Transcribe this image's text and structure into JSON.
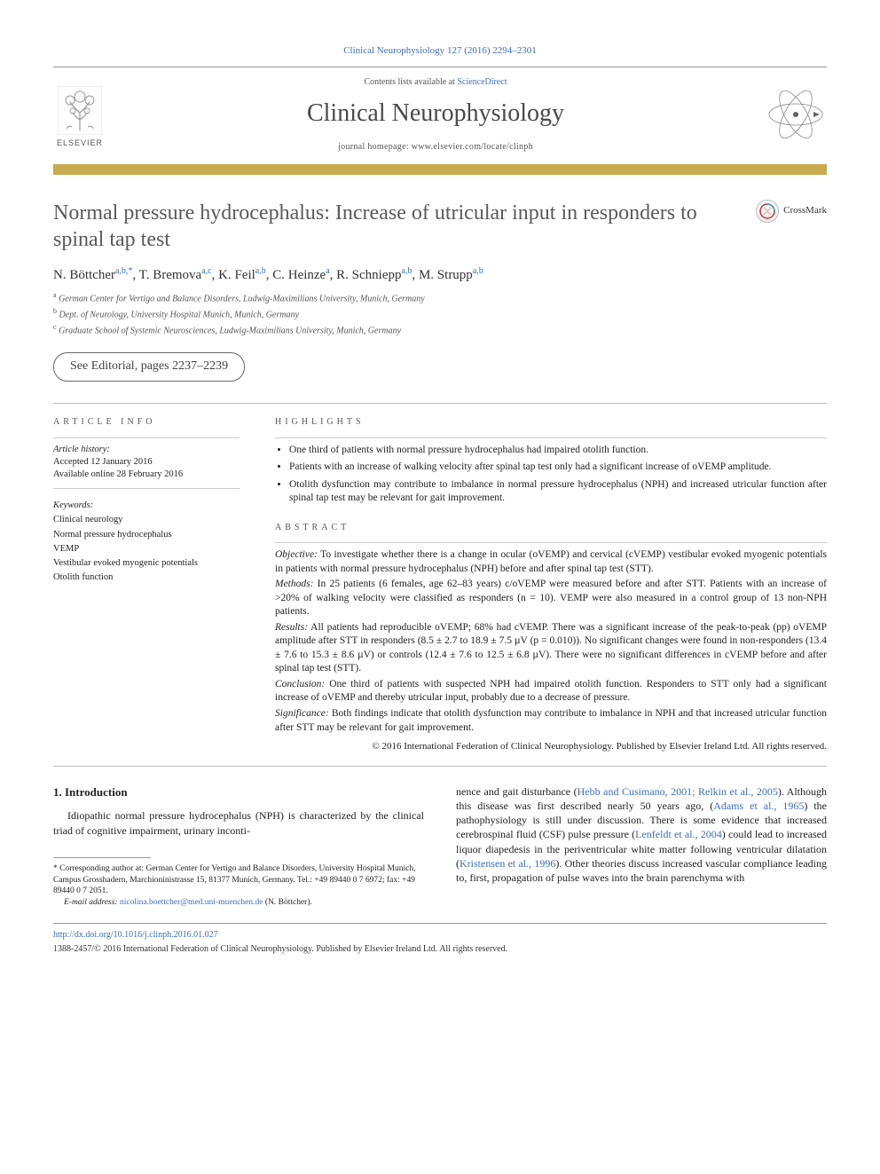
{
  "running_head": {
    "journal_abbrev": "Clinical Neurophysiology",
    "volume": "127",
    "year": "2016",
    "pages": "2294–2301"
  },
  "masthead": {
    "contents_prefix": "Contents lists available at ",
    "contents_link": "ScienceDirect",
    "journal_name": "Clinical Neurophysiology",
    "homepage_prefix": "journal homepage: ",
    "homepage": "www.elsevier.com/locate/clinph",
    "publisher_word": "ELSEVIER"
  },
  "colors": {
    "gold_bar": "#c9a94f",
    "link": "#3b6dbf",
    "title_gray": "#5a5a5a"
  },
  "title": "Normal pressure hydrocephalus: Increase of utricular input in responders to spinal tap test",
  "crossmark_label": "CrossMark",
  "authors": [
    {
      "name": "N. Böttcher",
      "aff": "a,b,",
      "star": "*"
    },
    {
      "name": "T. Bremova",
      "aff": "a,c"
    },
    {
      "name": "K. Feil",
      "aff": "a,b"
    },
    {
      "name": "C. Heinze",
      "aff": "a"
    },
    {
      "name": "R. Schniepp",
      "aff": "a,b"
    },
    {
      "name": "M. Strupp",
      "aff": "a,b"
    }
  ],
  "affiliations": [
    {
      "key": "a",
      "text": "German Center for Vertigo and Balance Disorders, Ludwig-Maximilians University, Munich, Germany"
    },
    {
      "key": "b",
      "text": "Dept. of Neurology, University Hospital Munich, Munich, Germany"
    },
    {
      "key": "c",
      "text": "Graduate School of Systemic Neurosciences, Ludwig-Maximilians University, Munich, Germany"
    }
  ],
  "editorial_note": "See Editorial, pages 2237–2239",
  "article_info": {
    "heading": "ARTICLE INFO",
    "history_label": "Article history:",
    "accepted": "Accepted 12 January 2016",
    "online": "Available online 28 February 2016",
    "keywords_label": "Keywords:",
    "keywords": [
      "Clinical neurology",
      "Normal pressure hydrocephalus",
      "VEMP",
      "Vestibular evoked myogenic potentials",
      "Otolith function"
    ]
  },
  "highlights": {
    "heading": "HIGHLIGHTS",
    "items": [
      "One third of patients with normal pressure hydrocephalus had impaired otolith function.",
      "Patients with an increase of walking velocity after spinal tap test only had a significant increase of oVEMP amplitude.",
      "Otolith dysfunction may contribute to imbalance in normal pressure hydrocephalus (NPH) and increased utricular function after spinal tap test may be relevant for gait improvement."
    ]
  },
  "abstract": {
    "heading": "ABSTRACT",
    "objective_label": "Objective:",
    "objective": "To investigate whether there is a change in ocular (oVEMP) and cervical (cVEMP) vestibular evoked myogenic potentials in patients with normal pressure hydrocephalus (NPH) before and after spinal tap test (STT).",
    "methods_label": "Methods:",
    "methods": "In 25 patients (6 females, age 62–83 years) c/oVEMP were measured before and after STT. Patients with an increase of >20% of walking velocity were classified as responders (n = 10). VEMP were also measured in a control group of 13 non-NPH patients.",
    "results_label": "Results:",
    "results": "All patients had reproducible oVEMP; 68% had cVEMP. There was a significant increase of the peak-to-peak (pp) oVEMP amplitude after STT in responders (8.5 ± 2.7 to 18.9 ± 7.5 µV (p = 0.010)). No significant changes were found in non-responders (13.4 ± 7.6 to 15.3 ± 8.6 µV) or controls (12.4 ± 7.6 to 12.5 ± 6.8 µV). There were no significant differences in cVEMP before and after spinal tap test (STT).",
    "conclusion_label": "Conclusion:",
    "conclusion": "One third of patients with suspected NPH had impaired otolith function. Responders to STT only had a significant increase of oVEMP and thereby utricular input, probably due to a decrease of pressure.",
    "significance_label": "Significance:",
    "significance": "Both findings indicate that otolith dysfunction may contribute to imbalance in NPH and that increased utricular function after STT may be relevant for gait improvement.",
    "copyright": "© 2016 International Federation of Clinical Neurophysiology. Published by Elsevier Ireland Ltd. All rights reserved."
  },
  "intro": {
    "heading": "1. Introduction",
    "col1": "Idiopathic normal pressure hydrocephalus (NPH) is characterized by the clinical triad of cognitive impairment, urinary inconti-",
    "col2_parts": [
      {
        "t": "nence and gait disturbance ("
      },
      {
        "c": "Hebb and Cusimano, 2001; Relkin et al., 2005"
      },
      {
        "t": "). Although this disease was first described nearly 50 years ago, ("
      },
      {
        "c": "Adams et al., 1965"
      },
      {
        "t": ") the pathophysiology is still under discussion. There is some evidence that increased cerebrospinal fluid (CSF) pulse pressure ("
      },
      {
        "c": "Lenfeldt et al., 2004"
      },
      {
        "t": ") could lead to increased liquor diapedesis in the periventricular white matter following ventricular dilatation ("
      },
      {
        "c": "Kristensen et al., 1996"
      },
      {
        "t": "). Other theories discuss increased vascular compliance leading to, first, propagation of pulse waves into the brain parenchyma with"
      }
    ]
  },
  "footnotes": {
    "corr_symbol": "*",
    "corr_text": "Corresponding author at: German Center for Vertigo and Balance Disorders, University Hospital Munich, Campus Grosshadern, Marchioninistrasse 15, 81377 Munich, Germany. Tel.: +49 89440 0 7 6972; fax: +49 89440 0 7 2051.",
    "email_label": "E-mail address:",
    "email": "nicolina.boettcher@med.uni-muenchen.de",
    "email_attrib": "(N. Böttcher)."
  },
  "footer": {
    "doi": "http://dx.doi.org/10.1016/j.clinph.2016.01.027",
    "issn_line": "1388-2457/© 2016 International Federation of Clinical Neurophysiology. Published by Elsevier Ireland Ltd. All rights reserved."
  }
}
